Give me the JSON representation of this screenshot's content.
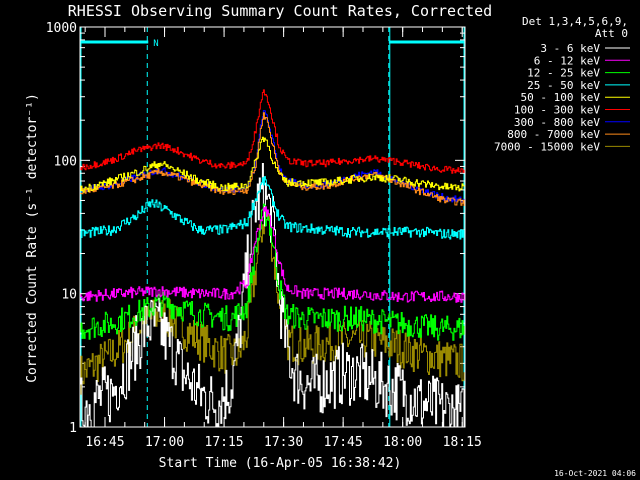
{
  "chart_data": {
    "type": "line",
    "title": "RHESSI Observing Summary Count Rates, Corrected",
    "xlabel": "Start Time (16-Apr-05 16:38:42)",
    "ylabel": "Corrected Count Rate (s⁻¹ detector⁻¹)",
    "y_scale": "log",
    "ylim": [
      1,
      1000
    ],
    "xlim_minutes": [
      0,
      97
    ],
    "x_ticks": [
      {
        "label": "16:45",
        "t": 6.3
      },
      {
        "label": "17:00",
        "t": 21.3
      },
      {
        "label": "17:15",
        "t": 36.3
      },
      {
        "label": "17:30",
        "t": 51.3
      },
      {
        "label": "17:45",
        "t": 66.3
      },
      {
        "label": "18:00",
        "t": 81.3
      },
      {
        "label": "18:15",
        "t": 96.3
      }
    ],
    "y_ticks": [
      {
        "label": "1",
        "v": 1
      },
      {
        "label": "10",
        "v": 10
      },
      {
        "label": "100",
        "v": 100
      },
      {
        "label": "1000",
        "v": 1000
      }
    ],
    "legend_header": [
      "Det 1,3,4,5,6,9,",
      "Att 0"
    ],
    "legend_placement": "right",
    "footer_date": "16-Oct-2021 04:06",
    "night_marker_label": "N",
    "night_intervals_minutes": [
      [
        0,
        17.2
      ],
      [
        77.8,
        97
      ]
    ],
    "series": [
      {
        "name": "3 - 6 keV",
        "color": "#ffffff",
        "t": [
          0,
          8,
          12,
          17,
          20,
          24,
          26,
          30,
          34,
          38,
          40,
          42,
          44,
          46,
          47,
          48,
          49,
          50,
          52,
          54,
          58,
          62,
          66,
          70,
          74,
          78,
          82,
          86,
          90,
          94,
          97
        ],
        "v": [
          1.4,
          1.8,
          3.0,
          6.0,
          5.5,
          3.5,
          2.5,
          1.8,
          1.5,
          2.0,
          5.0,
          15,
          45,
          58,
          50,
          40,
          25,
          10,
          4,
          2.5,
          2.0,
          2.2,
          2.5,
          2.5,
          2.2,
          2.0,
          1.8,
          1.5,
          1.4,
          1.3,
          1.2
        ]
      },
      {
        "name": "6 - 12 keV",
        "color": "#ff00ff",
        "t": [
          0,
          10,
          20,
          30,
          38,
          42,
          44,
          46,
          47,
          48,
          50,
          52,
          56,
          62,
          70,
          80,
          90,
          97
        ],
        "v": [
          9.5,
          10,
          10.5,
          10,
          10,
          12,
          25,
          40,
          42,
          35,
          18,
          11,
          10,
          10,
          10,
          9.5,
          9.5,
          9.5
        ]
      },
      {
        "name": "12 - 25 keV",
        "color": "#00ff00",
        "t": [
          0,
          8,
          16,
          20,
          24,
          30,
          38,
          42,
          44,
          46,
          47,
          48,
          50,
          52,
          56,
          62,
          70,
          80,
          90,
          97
        ],
        "v": [
          5.5,
          6,
          7.5,
          8.5,
          8,
          7,
          6.5,
          8,
          20,
          38,
          40,
          30,
          12,
          7,
          6.5,
          6.5,
          6.5,
          6,
          5.5,
          5.5
        ]
      },
      {
        "name": "25 - 50 keV",
        "color": "#00ffff",
        "t": [
          0,
          8,
          14,
          18,
          22,
          26,
          30,
          36,
          42,
          44,
          46,
          47,
          48,
          50,
          52,
          56,
          62,
          68,
          74,
          80,
          86,
          92,
          97
        ],
        "v": [
          28,
          30,
          38,
          48,
          42,
          35,
          30,
          30,
          34,
          50,
          70,
          68,
          55,
          38,
          32,
          31,
          30,
          29,
          29,
          29,
          29,
          28,
          28
        ]
      },
      {
        "name": "50 - 100 keV",
        "color": "#ffff00",
        "t": [
          0,
          8,
          16,
          20,
          24,
          30,
          36,
          42,
          44,
          46,
          47,
          48,
          50,
          52,
          56,
          62,
          68,
          74,
          80,
          86,
          92,
          97
        ],
        "v": [
          60,
          70,
          85,
          95,
          85,
          70,
          62,
          65,
          95,
          150,
          140,
          110,
          78,
          68,
          68,
          68,
          72,
          75,
          72,
          67,
          63,
          62
        ]
      },
      {
        "name": "100 - 300 keV",
        "color": "#ff0000",
        "t": [
          0,
          8,
          14,
          20,
          24,
          30,
          36,
          42,
          44,
          46,
          47,
          48,
          50,
          52,
          56,
          62,
          68,
          74,
          80,
          86,
          92,
          97
        ],
        "v": [
          88,
          100,
          118,
          130,
          120,
          100,
          90,
          95,
          160,
          330,
          310,
          230,
          130,
          100,
          95,
          95,
          100,
          103,
          98,
          90,
          85,
          82
        ]
      },
      {
        "name": "300 - 800 keV",
        "color": "#0000ff",
        "t": [
          0,
          8,
          14,
          20,
          24,
          30,
          36,
          42,
          44,
          46,
          47,
          48,
          50,
          52,
          56,
          62,
          68,
          74,
          80,
          86,
          92,
          97
        ],
        "v": [
          60,
          65,
          75,
          85,
          78,
          68,
          60,
          62,
          88,
          230,
          215,
          160,
          90,
          70,
          65,
          66,
          75,
          82,
          70,
          60,
          52,
          50
        ]
      },
      {
        "name": "800 - 7000 keV",
        "color": "#ff8c1a",
        "t": [
          0,
          8,
          14,
          20,
          24,
          30,
          36,
          42,
          44,
          46,
          47,
          48,
          50,
          52,
          56,
          62,
          68,
          74,
          80,
          86,
          92,
          97
        ],
        "v": [
          58,
          64,
          72,
          82,
          76,
          66,
          58,
          60,
          85,
          220,
          205,
          150,
          85,
          68,
          63,
          64,
          72,
          78,
          68,
          58,
          50,
          48
        ]
      },
      {
        "name": "7000 - 15000 keV",
        "color": "#9a8a00",
        "t": [
          0,
          8,
          12,
          16,
          20,
          24,
          30,
          36,
          40,
          42,
          44,
          46,
          47,
          48,
          50,
          52,
          56,
          62,
          68,
          74,
          80,
          86,
          92,
          97
        ],
        "v": [
          2.5,
          3.5,
          4.5,
          6.0,
          7.0,
          6.0,
          4.5,
          3.5,
          3.5,
          5,
          14,
          35,
          38,
          28,
          9,
          4.5,
          4.0,
          4.2,
          4.5,
          4.5,
          4.0,
          3.5,
          3.2,
          3.0
        ]
      }
    ]
  }
}
